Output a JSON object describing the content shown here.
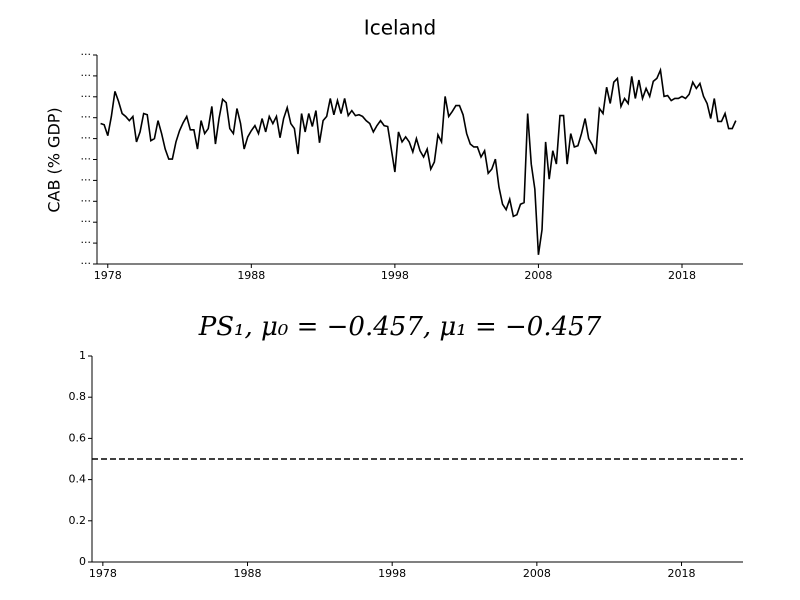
{
  "chart_data": [
    {
      "type": "line",
      "title": "Iceland",
      "ylabel": "CAB (% GDP)",
      "color": "#000000",
      "xlim": [
        1977.25,
        2022.25
      ],
      "xticks": [
        1978,
        1988,
        1998,
        2008,
        2018
      ],
      "ylim": [
        -30,
        20
      ],
      "yticks": [
        {
          "value": -30,
          "label": "..."
        },
        {
          "value": -25,
          "label": "..."
        },
        {
          "value": -20,
          "label": "..."
        },
        {
          "value": -15,
          "label": "..."
        },
        {
          "value": -10,
          "label": "..."
        },
        {
          "value": -5,
          "label": "..."
        },
        {
          "value": 0,
          "label": "..."
        },
        {
          "value": 5,
          "label": "..."
        },
        {
          "value": 10,
          "label": "..."
        },
        {
          "value": 15,
          "label": "..."
        },
        {
          "value": 20,
          "label": "..."
        }
      ],
      "grid": false,
      "x": [
        1977.5,
        1977.75,
        1978,
        1978.25,
        1978.5,
        1978.75,
        1979,
        1979.25,
        1979.5,
        1979.75,
        1980,
        1980.25,
        1980.5,
        1980.75,
        1981,
        1981.25,
        1981.5,
        1981.75,
        1982,
        1982.25,
        1982.5,
        1982.75,
        1983,
        1983.25,
        1983.5,
        1983.75,
        1984,
        1984.25,
        1984.5,
        1984.75,
        1985,
        1985.25,
        1985.5,
        1985.75,
        1986,
        1986.25,
        1986.5,
        1986.75,
        1987,
        1987.25,
        1987.5,
        1987.75,
        1988,
        1988.25,
        1988.5,
        1988.75,
        1989,
        1989.25,
        1989.5,
        1989.75,
        1990,
        1990.25,
        1990.5,
        1990.75,
        1991,
        1991.25,
        1991.5,
        1991.75,
        1992,
        1992.25,
        1992.5,
        1992.75,
        1993,
        1993.25,
        1993.5,
        1993.75,
        1994,
        1994.25,
        1994.5,
        1994.75,
        1995,
        1995.25,
        1995.5,
        1995.75,
        1996,
        1996.25,
        1996.5,
        1996.75,
        1997,
        1997.25,
        1997.5,
        1997.75,
        1998,
        1998.25,
        1998.5,
        1998.75,
        1999,
        1999.25,
        1999.5,
        1999.75,
        2000,
        2000.25,
        2000.5,
        2000.75,
        2001,
        2001.25,
        2001.5,
        2001.75,
        2002,
        2002.25,
        2002.5,
        2002.75,
        2003,
        2003.25,
        2003.5,
        2003.75,
        2004,
        2004.25,
        2004.5,
        2004.75,
        2005,
        2005.25,
        2005.5,
        2005.75,
        2006,
        2006.25,
        2006.5,
        2006.75,
        2007,
        2007.25,
        2007.5,
        2007.75,
        2008,
        2008.25,
        2008.5,
        2008.75,
        2009,
        2009.25,
        2009.5,
        2009.75,
        2010,
        2010.25,
        2010.5,
        2010.75,
        2011,
        2011.25,
        2011.5,
        2011.75,
        2012,
        2012.25,
        2012.5,
        2012.75,
        2013,
        2013.25,
        2013.5,
        2013.75,
        2014,
        2014.25,
        2014.5,
        2014.75,
        2015,
        2015.25,
        2015.5,
        2015.75,
        2016,
        2016.25,
        2016.5,
        2016.75,
        2017,
        2017.25,
        2017.5,
        2017.75,
        2018,
        2018.25,
        2018.5,
        2018.75,
        2019,
        2019.25,
        2019.5,
        2019.75,
        2020,
        2020.25,
        2020.5,
        2020.75,
        2021,
        2021.25,
        2021.5,
        2021.75
      ],
      "values": [
        3.6,
        3.3,
        0.7,
        5.3,
        11.3,
        8.9,
        6.0,
        5.3,
        4.3,
        5.3,
        -0.8,
        1.6,
        6.0,
        5.7,
        -0.5,
        0.0,
        4.3,
        1.2,
        -2.5,
        -4.9,
        -4.9,
        -0.8,
        1.9,
        3.8,
        5.3,
        2.1,
        2.1,
        -2.5,
        4.3,
        1.2,
        2.4,
        7.7,
        -1.3,
        4.8,
        9.4,
        8.6,
        2.4,
        1.2,
        7.2,
        3.6,
        -2.5,
        0.4,
        1.9,
        3.1,
        1.2,
        4.8,
        1.6,
        5.3,
        3.6,
        5.3,
        0.2,
        4.8,
        7.4,
        3.6,
        2.4,
        -3.7,
        6.0,
        1.6,
        6.0,
        2.9,
        6.7,
        -1.0,
        4.3,
        5.3,
        9.6,
        5.7,
        9.1,
        6.0,
        9.6,
        5.5,
        6.7,
        5.5,
        5.7,
        5.3,
        4.3,
        3.6,
        1.6,
        3.1,
        4.3,
        3.1,
        2.9,
        -2.5,
        -8.0,
        1.6,
        -0.8,
        0.4,
        -0.8,
        -3.2,
        0.0,
        -2.9,
        -4.4,
        -2.5,
        -7.3,
        -5.6,
        0.9,
        -0.8,
        10.1,
        5.3,
        6.5,
        7.9,
        7.9,
        5.7,
        1.2,
        -1.3,
        -2.0,
        -2.0,
        -4.4,
        -2.9,
        -8.3,
        -7.3,
        -4.9,
        -11.6,
        -15.7,
        -17.0,
        -14.5,
        -18.6,
        -18.2,
        -15.7,
        -15.3,
        6.0,
        -6.1,
        -12.1,
        -27.8,
        -21.8,
        -0.8,
        -9.7,
        -2.9,
        -6.1,
        5.5,
        5.5,
        -6.1,
        1.2,
        -2.0,
        -1.7,
        1.2,
        4.8,
        0.0,
        -1.5,
        -3.7,
        7.2,
        6.0,
        12.3,
        8.4,
        13.5,
        14.4,
        7.7,
        9.6,
        8.4,
        14.9,
        9.6,
        14.0,
        9.6,
        12.0,
        10.1,
        13.7,
        14.4,
        16.4,
        10.1,
        10.3,
        9.1,
        9.6,
        9.6,
        10.1,
        9.6,
        10.6,
        13.5,
        12.0,
        13.2,
        10.1,
        8.4,
        4.8,
        9.6,
        4.1,
        4.1,
        6.0,
        2.4,
        2.4,
        4.3
      ]
    },
    {
      "type": "line",
      "title": "PS₁, μ₀ = −0.457, μ₁ = −0.457",
      "color": "#000000",
      "linestyle": "dashed",
      "xlim": [
        1977.25,
        2022.25
      ],
      "xticks": [
        1978,
        1988,
        1998,
        2008,
        2018
      ],
      "ylim": [
        0,
        1
      ],
      "yticks": [
        0,
        0.2,
        0.4,
        0.6,
        0.8,
        1
      ],
      "grid": false,
      "x": [
        1977.25,
        2022.25
      ],
      "values": [
        0.5,
        0.5
      ]
    }
  ]
}
